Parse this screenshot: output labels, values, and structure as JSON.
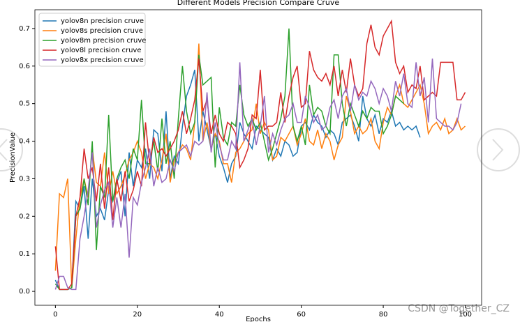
{
  "chart_data": {
    "type": "line",
    "title": "Different Models Precision Compare Cruve",
    "x_label": "Epochs",
    "y_label": "PrecisionValue",
    "x": [
      0,
      1,
      2,
      3,
      4,
      5,
      6,
      7,
      8,
      9,
      10,
      11,
      12,
      13,
      14,
      15,
      16,
      17,
      18,
      19,
      20,
      21,
      22,
      23,
      24,
      25,
      26,
      27,
      28,
      29,
      30,
      31,
      32,
      33,
      34,
      35,
      36,
      37,
      38,
      39,
      40,
      41,
      42,
      43,
      44,
      45,
      46,
      47,
      48,
      49,
      50,
      51,
      52,
      53,
      54,
      55,
      56,
      57,
      58,
      59,
      60,
      61,
      62,
      63,
      64,
      65,
      66,
      67,
      68,
      69,
      70,
      71,
      72,
      73,
      74,
      75,
      76,
      77,
      78,
      79,
      80,
      81,
      82,
      83,
      84,
      85,
      86,
      87,
      88,
      89,
      90,
      91,
      92,
      93,
      94,
      95,
      96,
      97,
      98,
      99,
      100
    ],
    "series": [
      {
        "name": "yolov8n precision cruve",
        "color": "#1f77b4",
        "values": [
          0.03,
          0.005,
          0.005,
          0.005,
          0.01,
          0.24,
          0.22,
          0.28,
          0.14,
          0.3,
          0.2,
          0.22,
          0.19,
          0.27,
          0.24,
          0.29,
          0.32,
          0.2,
          0.37,
          0.28,
          0.35,
          0.33,
          0.38,
          0.3,
          0.43,
          0.42,
          0.32,
          0.48,
          0.3,
          0.36,
          0.34,
          0.44,
          0.52,
          0.55,
          0.59,
          0.4,
          0.48,
          0.43,
          0.38,
          0.42,
          0.36,
          0.33,
          0.29,
          0.34,
          0.36,
          0.45,
          0.42,
          0.4,
          0.38,
          0.44,
          0.43,
          0.42,
          0.41,
          0.35,
          0.38,
          0.36,
          0.4,
          0.39,
          0.36,
          0.37,
          0.44,
          0.45,
          0.43,
          0.47,
          0.45,
          0.44,
          0.41,
          0.43,
          0.42,
          0.39,
          0.45,
          0.46,
          0.47,
          0.44,
          0.4,
          0.52,
          0.46,
          0.44,
          0.47,
          0.42,
          0.46,
          0.45,
          0.48,
          0.44,
          0.45,
          0.43,
          0.44,
          0.43,
          0.44,
          0.41,
          null,
          null,
          null,
          null,
          null,
          null,
          null,
          null,
          null,
          null,
          null
        ]
      },
      {
        "name": "yolov8s precision cruve",
        "color": "#ff7f0e",
        "values": [
          0.055,
          0.26,
          0.25,
          0.3,
          0.01,
          0.14,
          0.25,
          0.3,
          0.25,
          0.38,
          0.29,
          0.28,
          0.37,
          0.26,
          0.32,
          0.26,
          0.28,
          0.31,
          0.35,
          0.37,
          0.4,
          0.37,
          0.3,
          0.34,
          0.33,
          0.3,
          0.35,
          0.42,
          0.29,
          0.35,
          0.37,
          0.39,
          0.38,
          0.35,
          0.45,
          0.66,
          0.4,
          0.45,
          0.38,
          0.42,
          0.4,
          0.34,
          0.34,
          0.29,
          0.37,
          0.38,
          0.4,
          0.42,
          0.43,
          0.5,
          0.42,
          0.45,
          0.43,
          0.35,
          0.36,
          0.41,
          0.4,
          0.42,
          0.44,
          0.39,
          0.42,
          0.46,
          0.4,
          0.39,
          0.43,
          0.38,
          0.42,
          0.4,
          0.35,
          0.39,
          0.41,
          0.52,
          0.48,
          0.42,
          0.44,
          0.42,
          0.43,
          0.46,
          0.4,
          0.38,
          0.45,
          0.49,
          0.47,
          0.52,
          0.55,
          0.5,
          0.49,
          0.51,
          0.53,
          0.55,
          0.5,
          0.42,
          0.44,
          0.45,
          0.43,
          0.46,
          0.42,
          0.43,
          0.46,
          0.43,
          0.44
        ]
      },
      {
        "name": "yolov8m precision cruve",
        "color": "#2ca02c",
        "values": [
          0.02,
          0.005,
          0.005,
          0.005,
          0.01,
          0.2,
          0.22,
          0.3,
          0.23,
          0.4,
          0.11,
          0.28,
          0.25,
          0.47,
          0.24,
          0.3,
          0.33,
          0.35,
          0.3,
          0.38,
          0.35,
          0.51,
          0.34,
          0.34,
          0.4,
          0.32,
          0.46,
          0.34,
          0.4,
          0.3,
          0.46,
          0.6,
          0.48,
          0.42,
          0.45,
          0.63,
          0.55,
          0.56,
          0.57,
          0.33,
          0.49,
          0.41,
          0.39,
          0.45,
          0.44,
          0.55,
          0.47,
          0.44,
          0.46,
          0.43,
          0.45,
          0.4,
          0.35,
          0.38,
          0.42,
          0.46,
          0.52,
          0.7,
          0.44,
          0.4,
          0.44,
          0.39,
          0.55,
          0.47,
          0.49,
          0.48,
          0.44,
          0.42,
          0.63,
          0.63,
          0.5,
          0.44,
          0.5,
          0.47,
          0.44,
          0.48,
          0.46,
          0.49,
          0.48,
          0.48,
          0.42,
          0.44,
          0.47,
          0.52,
          0.51,
          0.5,
          null,
          null,
          null,
          null,
          null,
          null,
          null,
          null,
          null,
          null,
          null,
          null,
          null,
          null,
          null
        ]
      },
      {
        "name": "yolov8l precision cruve",
        "color": "#d62728",
        "values": [
          0.12,
          0.005,
          0.005,
          0.005,
          0.02,
          0.2,
          0.25,
          0.38,
          0.3,
          0.33,
          0.24,
          0.34,
          0.22,
          0.33,
          0.19,
          0.3,
          0.24,
          0.32,
          0.24,
          0.27,
          0.32,
          0.28,
          0.45,
          0.34,
          0.41,
          0.37,
          0.38,
          0.36,
          0.38,
          0.4,
          0.43,
          0.48,
          0.42,
          0.46,
          0.51,
          0.62,
          0.48,
          0.51,
          0.42,
          0.47,
          0.42,
          0.4,
          0.45,
          0.44,
          0.42,
          0.33,
          0.35,
          0.38,
          0.47,
          0.46,
          0.59,
          0.43,
          0.44,
          0.44,
          0.45,
          0.53,
          0.45,
          0.52,
          0.57,
          0.6,
          0.49,
          0.5,
          0.64,
          0.59,
          0.57,
          0.56,
          0.58,
          0.55,
          0.6,
          0.52,
          0.59,
          0.53,
          0.62,
          0.55,
          0.52,
          0.54,
          0.66,
          0.71,
          0.65,
          0.63,
          0.68,
          0.7,
          0.72,
          0.61,
          0.58,
          0.6,
          0.53,
          0.55,
          0.54,
          0.6,
          0.51,
          0.52,
          0.53,
          0.52,
          0.61,
          0.61,
          0.61,
          0.61,
          0.51,
          0.51,
          0.53
        ]
      },
      {
        "name": "yolov8x precision cruve",
        "color": "#9467bd",
        "values": [
          0.005,
          0.04,
          0.04,
          0.01,
          0.005,
          0.005,
          0.14,
          0.2,
          0.27,
          0.37,
          0.17,
          0.23,
          0.27,
          0.29,
          0.17,
          0.25,
          0.17,
          0.26,
          0.09,
          0.25,
          0.23,
          0.29,
          0.33,
          0.38,
          0.28,
          0.33,
          0.29,
          0.3,
          0.35,
          0.32,
          0.37,
          0.38,
          0.39,
          0.36,
          0.4,
          0.39,
          0.4,
          0.53,
          0.37,
          0.45,
          0.39,
          0.35,
          0.35,
          0.4,
          0.38,
          0.61,
          0.4,
          0.43,
          0.46,
          0.39,
          0.44,
          0.52,
          0.37,
          0.42,
          0.39,
          0.43,
          0.46,
          0.47,
          0.5,
          0.45,
          0.45,
          0.52,
          0.49,
          0.45,
          0.47,
          0.43,
          0.44,
          0.49,
          0.51,
          0.46,
          0.52,
          0.54,
          0.48,
          0.55,
          0.51,
          0.53,
          0.52,
          0.56,
          0.54,
          0.5,
          0.54,
          0.52,
          0.48,
          0.56,
          0.52,
          0.58,
          0.5,
          0.49,
          0.61,
          0.52,
          0.57,
          0.45,
          0.62,
          0.46,
          0.45,
          0.44,
          0.44,
          0.43,
          0.45,
          0.5,
          null
        ]
      }
    ],
    "xlim": [
      -5,
      104
    ],
    "ylim": [
      -0.037,
      0.75
    ],
    "xticks": [
      0,
      20,
      40,
      60,
      80,
      100
    ],
    "yticks": [
      {
        "value": 0,
        "label": "0.0"
      },
      0.1,
      0.2,
      0.3,
      0.4,
      0.5,
      0.6,
      0.7
    ],
    "legend": "upper left"
  },
  "watermark": "CSDN @Together_CZ"
}
